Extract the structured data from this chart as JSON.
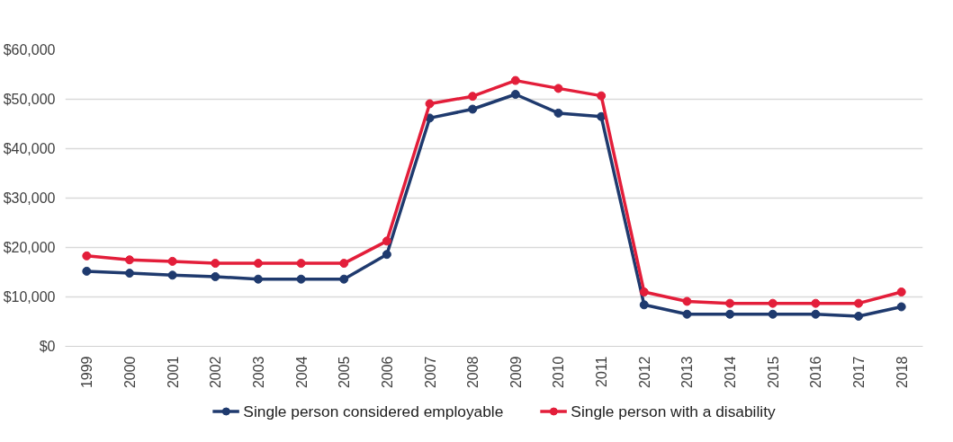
{
  "chart_data": {
    "type": "line",
    "categories": [
      "1999",
      "2000",
      "2001",
      "2002",
      "2003",
      "2004",
      "2005",
      "2006",
      "2007",
      "2008",
      "2009",
      "2010",
      "2011",
      "2012",
      "2013",
      "2014",
      "2015",
      "2016",
      "2017",
      "2018"
    ],
    "series": [
      {
        "name": "Single person considered employable",
        "color": "#1f3a6e",
        "values": [
          15200,
          14800,
          14400,
          14100,
          13600,
          13600,
          13600,
          18600,
          46200,
          48000,
          51000,
          47200,
          46500,
          8400,
          6500,
          6500,
          6500,
          6500,
          6100,
          8000
        ]
      },
      {
        "name": "Single person with a disability",
        "color": "#e31e3a",
        "values": [
          18300,
          17500,
          17200,
          16800,
          16800,
          16800,
          16800,
          21300,
          49100,
          50600,
          53800,
          52200,
          50700,
          11000,
          9100,
          8700,
          8700,
          8700,
          8700,
          11000
        ]
      }
    ],
    "ylim": [
      0,
      60000
    ],
    "yticks": [
      {
        "value": 0,
        "label": "$0"
      },
      {
        "value": 10000,
        "label": "$10,000"
      },
      {
        "value": 20000,
        "label": "$20,000"
      },
      {
        "value": 30000,
        "label": "$30,000"
      },
      {
        "value": 40000,
        "label": "$40,000"
      },
      {
        "value": 50000,
        "label": "$50,000"
      },
      {
        "value": 60000,
        "label": "$60,000"
      }
    ],
    "grid": "y",
    "legend": "bottom",
    "marker": "circle",
    "line_style": "solid"
  }
}
